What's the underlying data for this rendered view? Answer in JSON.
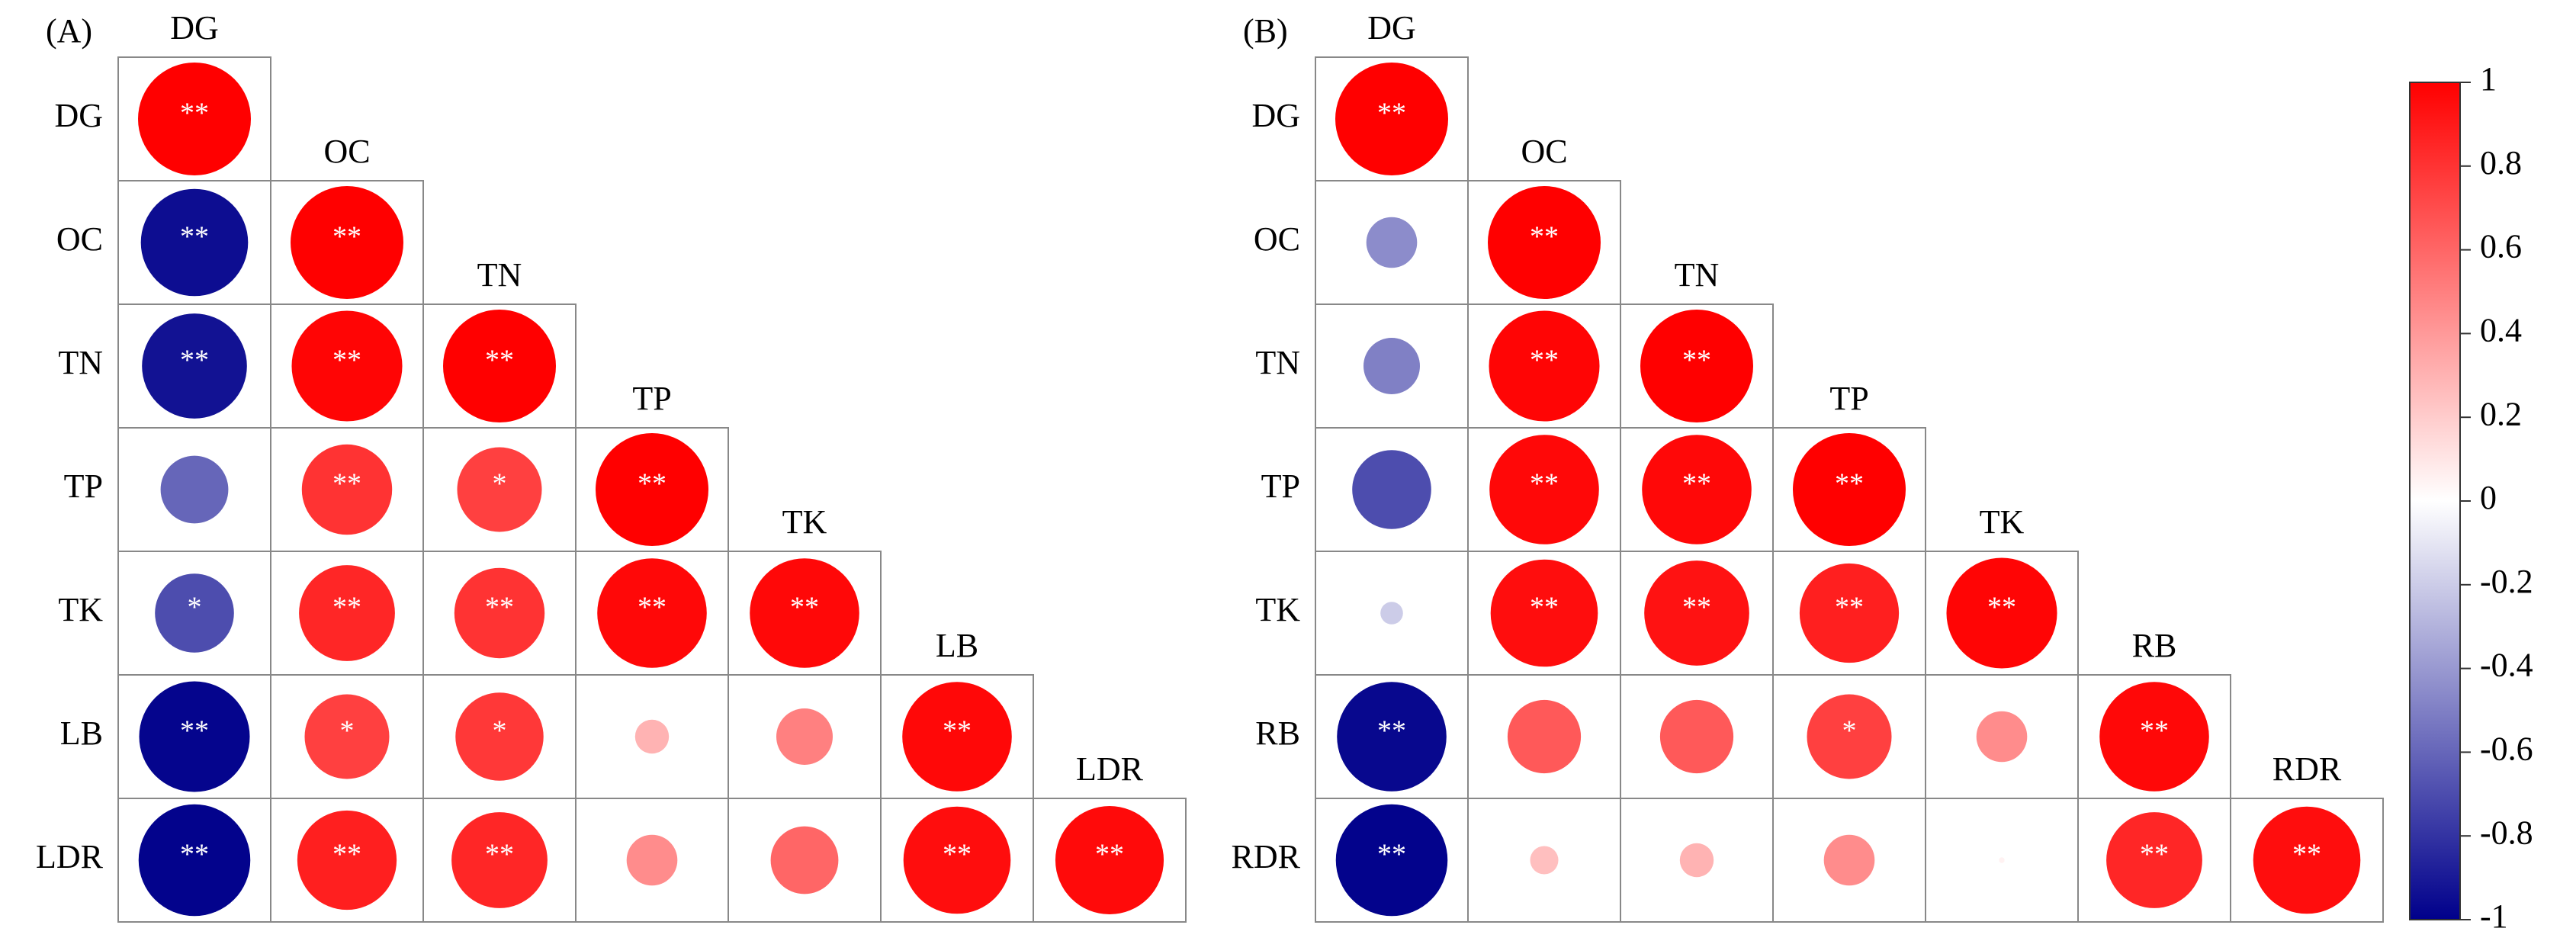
{
  "chart_data": [
    {
      "type": "corrplot",
      "label": "(A)",
      "variables": [
        "DG",
        "OC",
        "TN",
        "TP",
        "TK",
        "LB",
        "LDR"
      ],
      "values": [
        [
          1
        ],
        [
          -0.95,
          1
        ],
        [
          -0.93,
          0.98,
          1
        ],
        [
          -0.6,
          0.8,
          0.75,
          1
        ],
        [
          -0.7,
          0.85,
          0.8,
          0.97,
          0.97
        ],
        [
          -0.98,
          0.75,
          0.78,
          0.3,
          0.5,
          0.97
        ],
        [
          -0.99,
          0.88,
          0.85,
          0.45,
          0.6,
          0.95,
          0.96
        ]
      ],
      "significance": [
        [
          "**"
        ],
        [
          "**",
          "**"
        ],
        [
          "**",
          "**",
          "**"
        ],
        [
          null,
          "**",
          "*",
          "**"
        ],
        [
          "*",
          "**",
          "**",
          "**",
          "**"
        ],
        [
          "**",
          "*",
          "*",
          null,
          null,
          "**"
        ],
        [
          "**",
          "**",
          "**",
          null,
          null,
          "**",
          "**"
        ]
      ]
    },
    {
      "type": "corrplot",
      "label": "(B)",
      "variables": [
        "DG",
        "OC",
        "TN",
        "TP",
        "TK",
        "RB",
        "RDR"
      ],
      "values": [
        [
          1
        ],
        [
          -0.45,
          1
        ],
        [
          -0.5,
          0.98,
          1
        ],
        [
          -0.7,
          0.97,
          0.97,
          1
        ],
        [
          -0.2,
          0.95,
          0.93,
          0.88,
          0.98
        ],
        [
          -0.97,
          0.65,
          0.65,
          0.75,
          0.45,
          0.97
        ],
        [
          -0.99,
          0.25,
          0.3,
          0.45,
          0.05,
          0.85,
          0.95
        ]
      ],
      "significance": [
        [
          "**"
        ],
        [
          null,
          "**"
        ],
        [
          null,
          "**",
          "**"
        ],
        [
          null,
          "**",
          "**",
          "**"
        ],
        [
          null,
          "**",
          "**",
          "**",
          "**"
        ],
        [
          "**",
          null,
          null,
          "*",
          null,
          "**"
        ],
        [
          "**",
          null,
          null,
          null,
          null,
          "**",
          "**"
        ]
      ]
    }
  ],
  "colorbar": {
    "lim": [
      -1,
      1
    ],
    "ticks": [
      1,
      0.8,
      0.6,
      0.4,
      0.2,
      0,
      -0.2,
      -0.4,
      -0.6,
      -0.8,
      -1
    ],
    "low_color": "#00008b",
    "mid_color": "#ffffff",
    "high_color": "#ff0000"
  }
}
